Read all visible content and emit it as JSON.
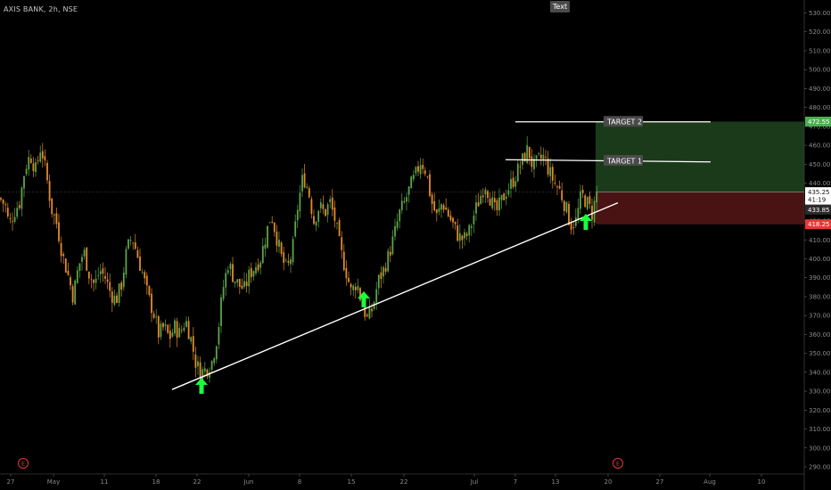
{
  "header": {
    "symbol_label": "AXIS BANK, 2h, NSE"
  },
  "toolbar": {
    "text_button": "Text"
  },
  "chart_data": {
    "type": "candlestick",
    "y_ticks": [
      290,
      300,
      310,
      320,
      330,
      340,
      350,
      360,
      370,
      380,
      390,
      400,
      410,
      420,
      430,
      440,
      450,
      460,
      470,
      480,
      490,
      500,
      510,
      520,
      530
    ],
    "y_tick_labels": [
      "290.00",
      "300.00",
      "310.00",
      "320.00",
      "330.00",
      "340.00",
      "350.00",
      "360.00",
      "370.00",
      "380.00",
      "390.00",
      "400.00",
      "410.00",
      "420.00",
      "430.00",
      "440.00",
      "450.00",
      "460.00",
      "470.00",
      "480.00",
      "490.00",
      "500.00",
      "510.00",
      "520.00",
      "530.00"
    ],
    "ylim": [
      286,
      534
    ],
    "x_ticks": [
      "27",
      "May",
      "11",
      "18",
      "22",
      "Jun",
      "8",
      "15",
      "22",
      "Jul",
      "7",
      "13",
      "20",
      "27",
      "Aug",
      "10"
    ],
    "price_path": [
      [
        0,
        432
      ],
      [
        6,
        428
      ],
      [
        10,
        418
      ],
      [
        16,
        425
      ],
      [
        22,
        430
      ],
      [
        28,
        448
      ],
      [
        34,
        455
      ],
      [
        40,
        447
      ],
      [
        46,
        460
      ],
      [
        52,
        444
      ],
      [
        58,
        426
      ],
      [
        64,
        418
      ],
      [
        70,
        402
      ],
      [
        76,
        392
      ],
      [
        82,
        380
      ],
      [
        88,
        396
      ],
      [
        94,
        404
      ],
      [
        100,
        392
      ],
      [
        106,
        386
      ],
      [
        112,
        394
      ],
      [
        118,
        390
      ],
      [
        124,
        382
      ],
      [
        130,
        378
      ],
      [
        136,
        386
      ],
      [
        142,
        404
      ],
      [
        148,
        412
      ],
      [
        154,
        402
      ],
      [
        160,
        392
      ],
      [
        166,
        380
      ],
      [
        172,
        372
      ],
      [
        178,
        360
      ],
      [
        184,
        364
      ],
      [
        190,
        358
      ],
      [
        196,
        364
      ],
      [
        202,
        360
      ],
      [
        208,
        368
      ],
      [
        214,
        358
      ],
      [
        220,
        344
      ],
      [
        226,
        340
      ],
      [
        232,
        342
      ],
      [
        238,
        346
      ],
      [
        244,
        360
      ],
      [
        250,
        384
      ],
      [
        256,
        398
      ],
      [
        262,
        390
      ],
      [
        268,
        386
      ],
      [
        274,
        384
      ],
      [
        280,
        392
      ],
      [
        286,
        396
      ],
      [
        292,
        400
      ],
      [
        298,
        412
      ],
      [
        304,
        424
      ],
      [
        310,
        412
      ],
      [
        316,
        400
      ],
      [
        322,
        394
      ],
      [
        328,
        404
      ],
      [
        334,
        428
      ],
      [
        340,
        444
      ],
      [
        346,
        436
      ],
      [
        352,
        420
      ],
      [
        358,
        428
      ],
      [
        364,
        424
      ],
      [
        370,
        430
      ],
      [
        376,
        420
      ],
      [
        382,
        404
      ],
      [
        388,
        394
      ],
      [
        394,
        382
      ],
      [
        400,
        388
      ],
      [
        406,
        376
      ],
      [
        412,
        368
      ],
      [
        418,
        374
      ],
      [
        424,
        388
      ],
      [
        430,
        394
      ],
      [
        436,
        402
      ],
      [
        442,
        412
      ],
      [
        448,
        424
      ],
      [
        454,
        430
      ],
      [
        460,
        438
      ],
      [
        466,
        444
      ],
      [
        472,
        452
      ],
      [
        478,
        446
      ],
      [
        484,
        430
      ],
      [
        490,
        422
      ],
      [
        496,
        430
      ],
      [
        502,
        424
      ],
      [
        508,
        418
      ],
      [
        514,
        412
      ],
      [
        520,
        410
      ],
      [
        526,
        414
      ],
      [
        532,
        424
      ],
      [
        538,
        432
      ],
      [
        544,
        440
      ],
      [
        550,
        432
      ],
      [
        556,
        424
      ],
      [
        562,
        430
      ],
      [
        568,
        436
      ],
      [
        574,
        440
      ],
      [
        580,
        446
      ],
      [
        586,
        452
      ],
      [
        592,
        458
      ],
      [
        598,
        448
      ],
      [
        604,
        452
      ],
      [
        610,
        454
      ],
      [
        616,
        446
      ],
      [
        622,
        440
      ],
      [
        628,
        436
      ],
      [
        634,
        428
      ],
      [
        640,
        418
      ],
      [
        646,
        420
      ],
      [
        652,
        434
      ],
      [
        658,
        430
      ],
      [
        664,
        424
      ],
      [
        670,
        436
      ]
    ],
    "last_price": 435.25,
    "trendline": {
      "x1": 193,
      "y1": 330.9,
      "x2": 693,
      "y2": 429.6
    },
    "target1": {
      "label": "TARGET 1",
      "y": 451.8
    },
    "target2": {
      "label": "TARGET 2",
      "y": 472.4
    },
    "long_position": {
      "profit_top": 472.55,
      "entry": 435.25,
      "stop": 418.25
    },
    "price_tags": [
      {
        "value": "472.55",
        "color": "#4caf50"
      },
      {
        "value": "435.25",
        "color": "#ffffff"
      },
      {
        "value": "41:19",
        "color": "#ffffff"
      },
      {
        "value": "433.85",
        "color": "#2b2b2b"
      },
      {
        "value": "418.25",
        "color": "#e53935"
      }
    ],
    "support_arrows": [
      226,
      408,
      657
    ],
    "event_markers": [
      {
        "label": "E"
      },
      {
        "label": "E"
      }
    ],
    "colors": {
      "up": "#5ea34b",
      "down": "#e38b2c",
      "target_zone": "#1a3a1a",
      "stop_zone": "#4a1313",
      "arrow": "#1bff3a",
      "trendline": "#ffffff"
    }
  }
}
